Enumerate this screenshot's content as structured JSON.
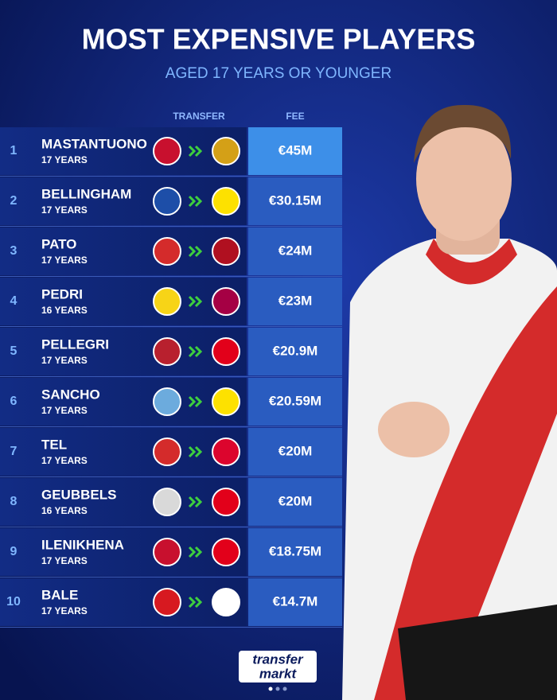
{
  "header": {
    "title": "MOST EXPENSIVE PLAYERS",
    "subtitle": "AGED 17 YEARS OR YOUNGER"
  },
  "table": {
    "columns": [
      "TRANSFER",
      "FEE"
    ],
    "rows": [
      {
        "rank": "1",
        "name": "MASTANTUONO",
        "age": "17 YEARS",
        "fee": "€45M"
      },
      {
        "rank": "2",
        "name": "BELLINGHAM",
        "age": "17 YEARS",
        "fee": "€30.15M"
      },
      {
        "rank": "3",
        "name": "PATO",
        "age": "17 YEARS",
        "fee": "€24M"
      },
      {
        "rank": "4",
        "name": "PEDRI",
        "age": "16 YEARS",
        "fee": "€23M"
      },
      {
        "rank": "5",
        "name": "PELLEGRI",
        "age": "17 YEARS",
        "fee": "€20.9M"
      },
      {
        "rank": "6",
        "name": "SANCHO",
        "age": "17 YEARS",
        "fee": "€20.59M"
      },
      {
        "rank": "7",
        "name": "TEL",
        "age": "17 YEARS",
        "fee": "€20M"
      },
      {
        "rank": "8",
        "name": "GEUBBELS",
        "age": "16 YEARS",
        "fee": "€20M"
      },
      {
        "rank": "9",
        "name": "ILENIKHENA",
        "age": "17 YEARS",
        "fee": "€18.75M"
      },
      {
        "rank": "10",
        "name": "BALE",
        "age": "17 YEARS",
        "fee": "€14.7M"
      }
    ]
  },
  "footer": {
    "logo_top": "transfer",
    "logo_bottom": "markt"
  }
}
